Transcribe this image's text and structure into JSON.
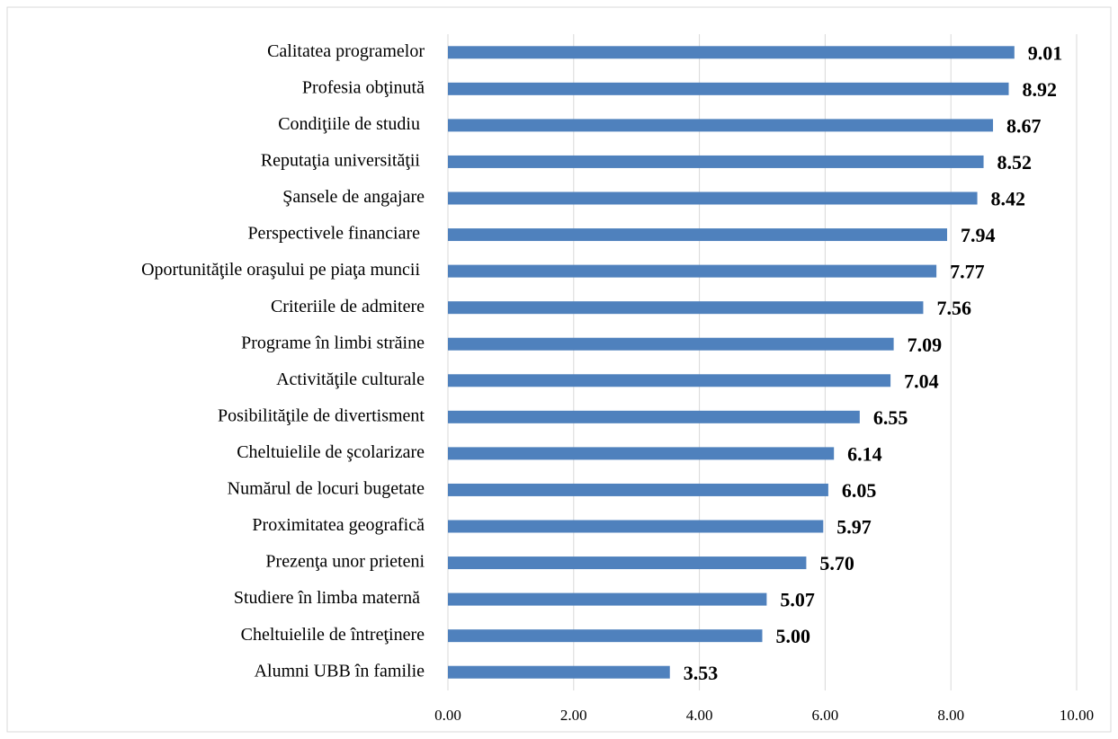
{
  "chart_data": {
    "type": "barh",
    "categories": [
      "Calitatea programelor",
      "Profesia obţinută",
      "Condiţiile de studiu ",
      "Reputaţia universităţii ",
      "Şansele de angajare",
      "Perspectivele financiare ",
      "Oportunităţile oraşului pe piaţa muncii ",
      "Criteriile de admitere",
      "Programe în limbi străine",
      "Activităţile culturale",
      "Posibilităţile de divertisment",
      "Cheltuielile de şcolarizare",
      "Numărul de locuri bugetate",
      "Proximitatea geografică",
      "Prezenţa unor prieteni",
      "Studiere în limba maternă ",
      "Cheltuielile de întreţinere",
      "Alumni UBB în familie"
    ],
    "values": [
      9.01,
      8.92,
      8.67,
      8.52,
      8.42,
      7.94,
      7.77,
      7.56,
      7.09,
      7.04,
      6.55,
      6.14,
      6.05,
      5.97,
      5.7,
      5.07,
      5.0,
      3.53
    ],
    "value_labels": [
      "9.01",
      "8.92",
      "8.67",
      "8.52",
      "8.42",
      "7.94",
      "7.77",
      "7.56",
      "7.09",
      "7.04",
      "6.55",
      "6.14",
      "6.05",
      "5.97",
      "5.70",
      "5.07",
      "5.00",
      "3.53"
    ],
    "color": "#4f81bd",
    "xlim": [
      0,
      10
    ],
    "xticks": [
      {
        "value": 0,
        "label": "0.00"
      },
      {
        "value": 2,
        "label": "2.00"
      },
      {
        "value": 4,
        "label": "4.00"
      },
      {
        "value": 6,
        "label": "6.00"
      },
      {
        "value": 8,
        "label": "8.00"
      },
      {
        "value": 10,
        "label": "10.00"
      }
    ],
    "grid": true
  }
}
